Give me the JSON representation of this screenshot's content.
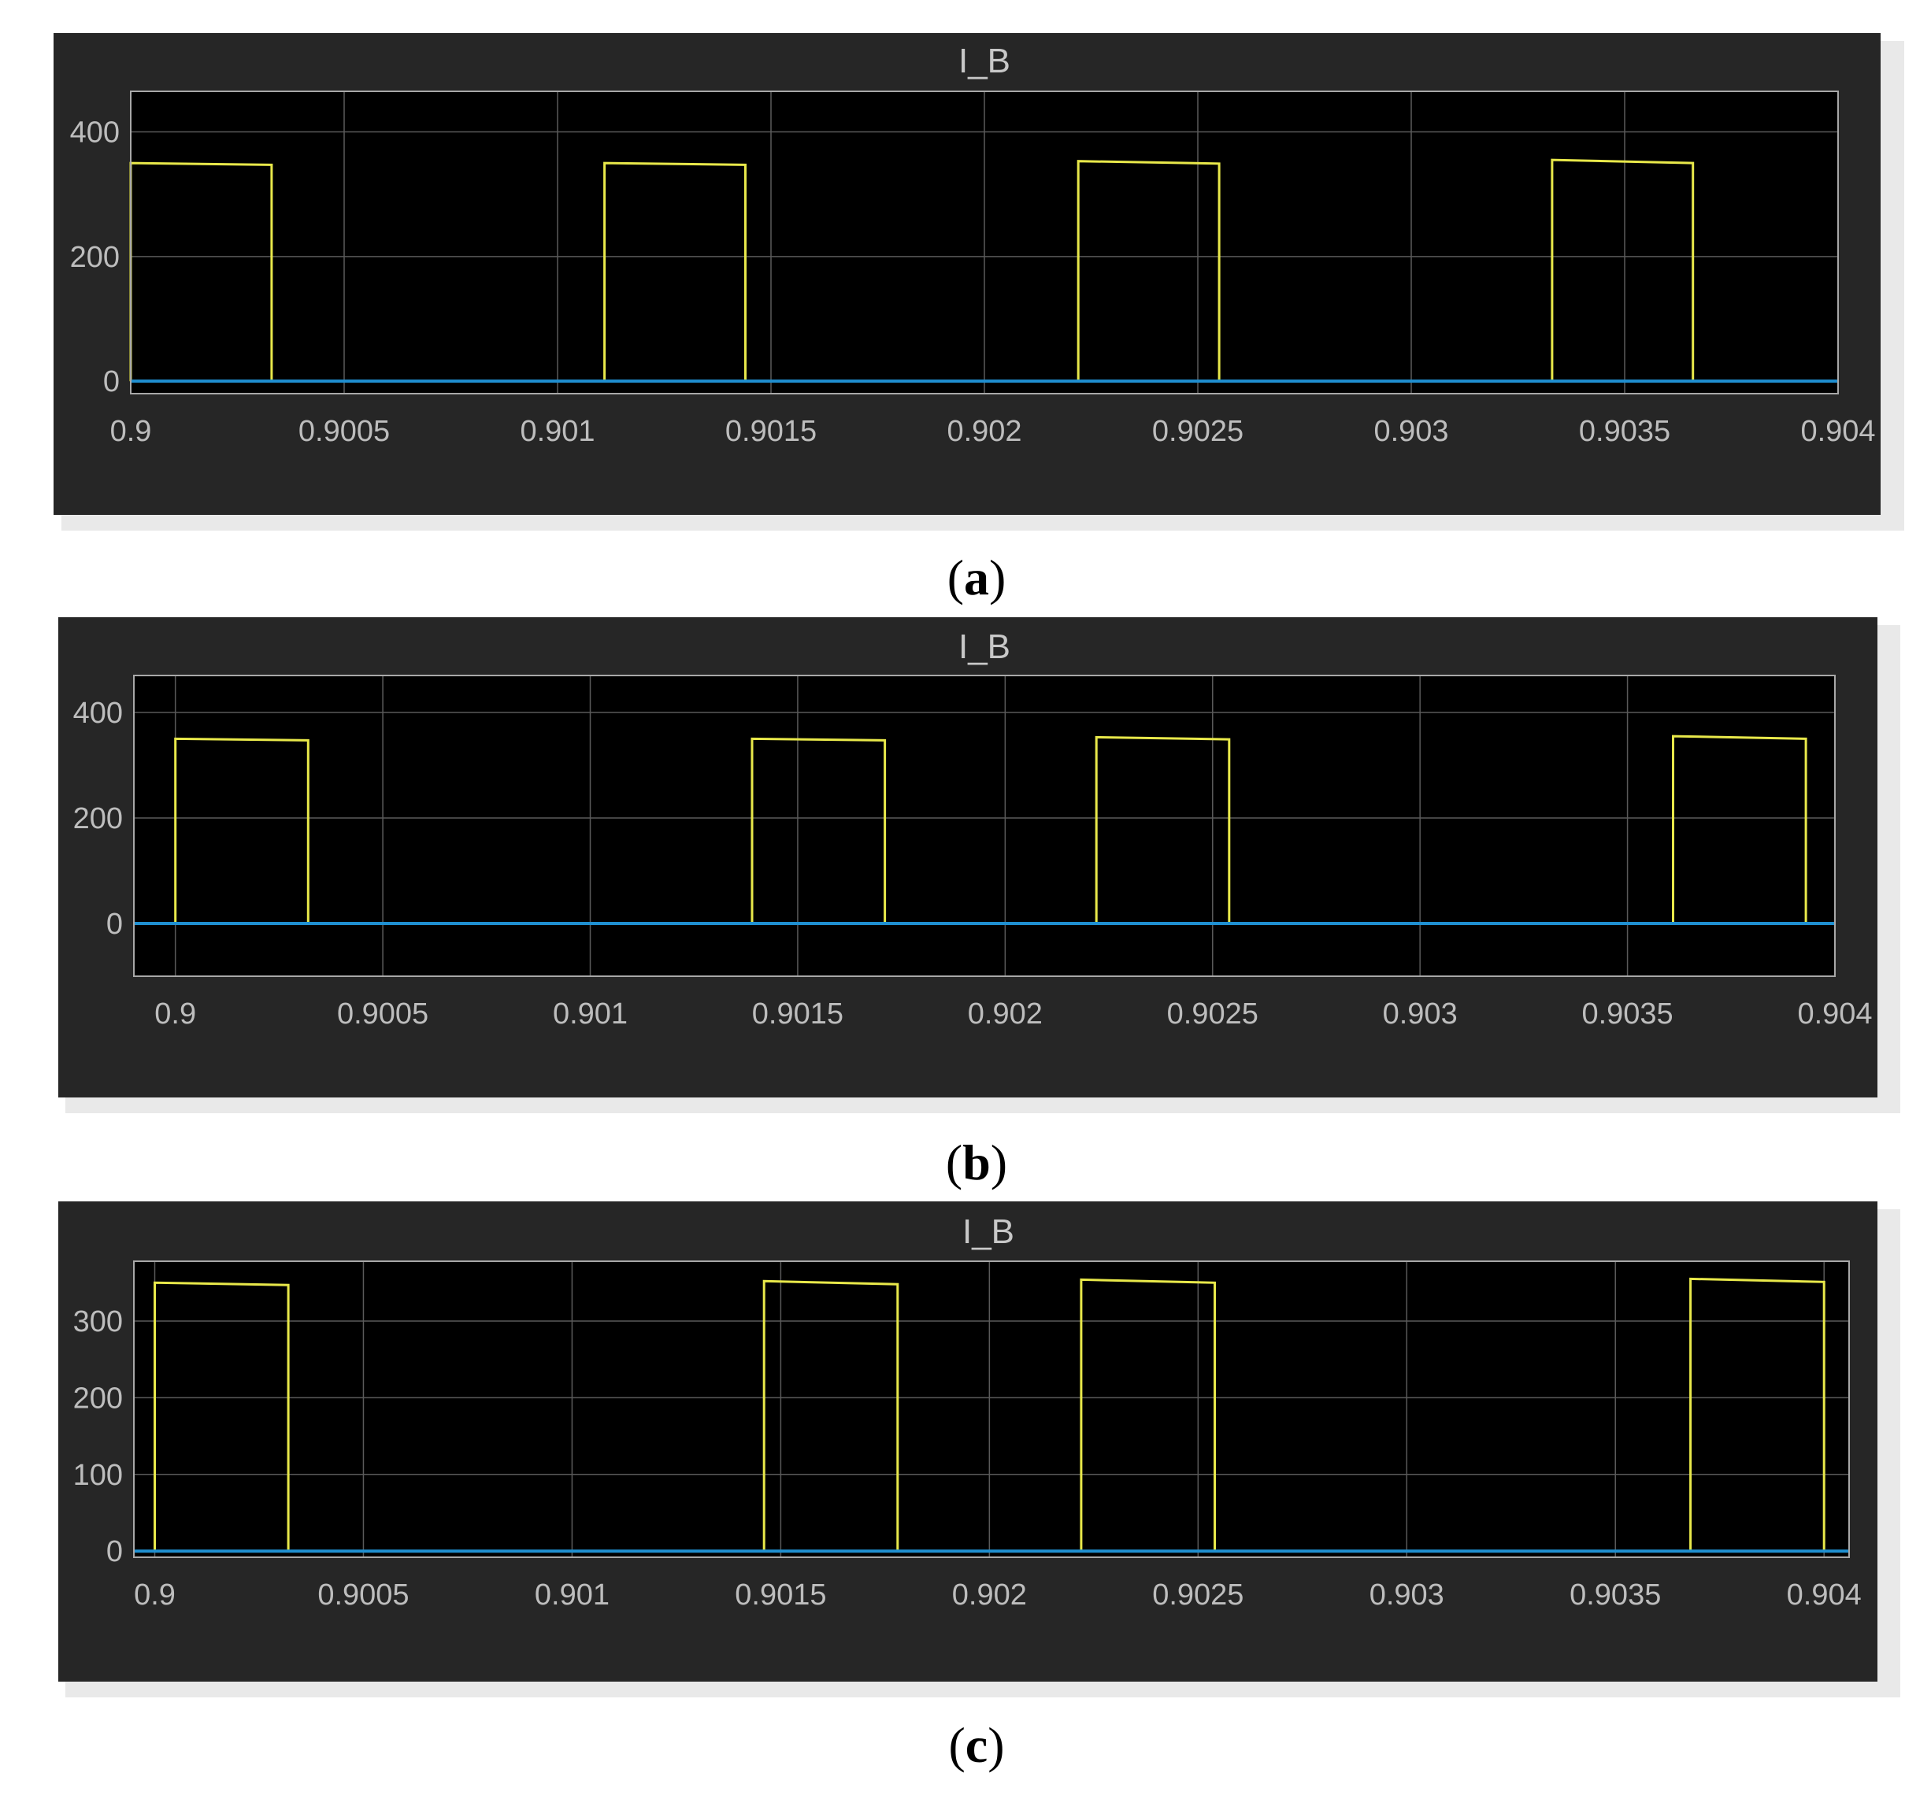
{
  "colors": {
    "panel_bg": "#262626",
    "plot_bg": "#000000",
    "grid": "#5a5a5a",
    "frame": "#a8a8a8",
    "series_yellow": "#e8e84a",
    "series_blue": "#1f8fd0",
    "shadow": "#e9e9e9"
  },
  "chart_data": [
    {
      "type": "line",
      "title": "I_B",
      "caption_letter": "a",
      "xlabel": "",
      "ylabel": "",
      "xlim": [
        0.9,
        0.904
      ],
      "ylim": [
        -20,
        465
      ],
      "x_ticks": [
        0.9,
        0.9005,
        0.901,
        0.9015,
        0.902,
        0.9025,
        0.903,
        0.9035,
        0.904
      ],
      "x_tick_labels": [
        "0.9",
        "0.9005",
        "0.901",
        "0.9015",
        "0.902",
        "0.9025",
        "0.903",
        "0.9035",
        "0.904"
      ],
      "y_ticks": [
        0,
        200,
        400
      ],
      "y_tick_labels": [
        "0",
        "200",
        "400"
      ],
      "grid": true,
      "legend": "none",
      "series": [
        {
          "color": "yellow",
          "pulses": [
            {
              "x_start": 0.9,
              "x_end": 0.90033,
              "y_start": 350,
              "y_end": 347
            },
            {
              "x_start": 0.90111,
              "x_end": 0.90144,
              "y_start": 350,
              "y_end": 347
            },
            {
              "x_start": 0.90222,
              "x_end": 0.90255,
              "y_start": 353,
              "y_end": 349
            },
            {
              "x_start": 0.90333,
              "x_end": 0.90366,
              "y_start": 355,
              "y_end": 350
            }
          ],
          "baseline": 0
        },
        {
          "color": "blue",
          "constant_value": 0
        }
      ]
    },
    {
      "type": "line",
      "title": "I_B",
      "caption_letter": "b",
      "xlabel": "",
      "ylabel": "",
      "xlim": [
        0.8999,
        0.904
      ],
      "ylim": [
        -100,
        470
      ],
      "x_ticks": [
        0.9,
        0.9005,
        0.901,
        0.9015,
        0.902,
        0.9025,
        0.903,
        0.9035,
        0.904
      ],
      "x_tick_labels": [
        "0.9",
        "0.9005",
        "0.901",
        "0.9015",
        "0.902",
        "0.9025",
        "0.903",
        "0.9035",
        "0.904"
      ],
      "y_ticks": [
        0,
        200,
        400
      ],
      "y_tick_labels": [
        "0",
        "200",
        "400"
      ],
      "grid": true,
      "legend": "none",
      "series": [
        {
          "color": "yellow",
          "pulses": [
            {
              "x_start": 0.9,
              "x_end": 0.90032,
              "y_start": 350,
              "y_end": 347
            },
            {
              "x_start": 0.90139,
              "x_end": 0.90171,
              "y_start": 350,
              "y_end": 347
            },
            {
              "x_start": 0.90222,
              "x_end": 0.90254,
              "y_start": 353,
              "y_end": 349
            },
            {
              "x_start": 0.90361,
              "x_end": 0.90393,
              "y_start": 355,
              "y_end": 350
            }
          ],
          "baseline": 0
        },
        {
          "color": "blue",
          "constant_value": 0
        }
      ]
    },
    {
      "type": "line",
      "title": "I_B",
      "caption_letter": "c",
      "xlabel": "",
      "ylabel": "",
      "xlim": [
        0.89995,
        0.90406
      ],
      "ylim": [
        -8,
        378
      ],
      "x_ticks": [
        0.9,
        0.9005,
        0.901,
        0.9015,
        0.902,
        0.9025,
        0.903,
        0.9035,
        0.904
      ],
      "x_tick_labels": [
        "0.9",
        "0.9005",
        "0.901",
        "0.9015",
        "0.902",
        "0.9025",
        "0.903",
        "0.9035",
        "0.904"
      ],
      "y_ticks": [
        0,
        100,
        200,
        300
      ],
      "y_tick_labels": [
        "0",
        "100",
        "200",
        "300"
      ],
      "grid": true,
      "legend": "none",
      "series": [
        {
          "color": "yellow",
          "pulses": [
            {
              "x_start": 0.9,
              "x_end": 0.90032,
              "y_start": 350,
              "y_end": 347
            },
            {
              "x_start": 0.90146,
              "x_end": 0.90178,
              "y_start": 352,
              "y_end": 348
            },
            {
              "x_start": 0.90222,
              "x_end": 0.90254,
              "y_start": 354,
              "y_end": 350
            },
            {
              "x_start": 0.90368,
              "x_end": 0.904,
              "y_start": 355,
              "y_end": 351
            }
          ],
          "baseline": 0
        },
        {
          "color": "blue",
          "constant_value": 0
        }
      ]
    }
  ]
}
